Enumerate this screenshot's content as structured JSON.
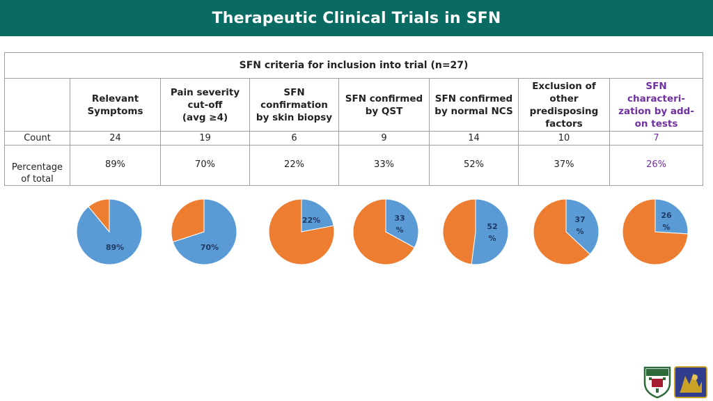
{
  "title": "Therapeutic Clinical Trials in SFN",
  "table": {
    "caption": "SFN criteria for inclusion into trial (n=27)",
    "columns": [
      {
        "header": "Relevant\nSymptoms",
        "count": "24",
        "percent": "89%"
      },
      {
        "header": "Pain severity\ncut-off\n(avg ≥4)",
        "count": "19",
        "percent": "70%"
      },
      {
        "header": "SFN\nconfirmation\nby skin biopsy",
        "count": "6",
        "percent": "22%"
      },
      {
        "header": "SFN confirmed\nby QST",
        "count": "9",
        "percent": "33%"
      },
      {
        "header": "SFN confirmed\nby normal NCS",
        "count": "14",
        "percent": "52%"
      },
      {
        "header": "Exclusion of\nother\npredisposing\nfactors",
        "count": "10",
        "percent": "37%"
      },
      {
        "header": "SFN\ncharacteri-\nzation by add-\non tests",
        "count": "7",
        "percent": "26%"
      }
    ],
    "row_labels": {
      "count": "Count",
      "percent": "Percentage\nof total"
    }
  },
  "chart_data": {
    "type": "pie",
    "series_colors": {
      "included": "#5b9bd5",
      "remaining": "#ed7d31"
    },
    "highlight_color": "#7030a0",
    "pies": [
      {
        "label": "89%",
        "value": 89
      },
      {
        "label": "70%",
        "value": 70
      },
      {
        "label": "22%",
        "value": 22
      },
      {
        "label": "33\n%",
        "value": 33
      },
      {
        "label": "52\n%",
        "value": 52
      },
      {
        "label": "37\n%",
        "value": 37
      },
      {
        "label": "26\n%",
        "value": 26
      }
    ]
  },
  "logos": {
    "left": "university-shield-icon",
    "right": "department-crest-icon"
  }
}
